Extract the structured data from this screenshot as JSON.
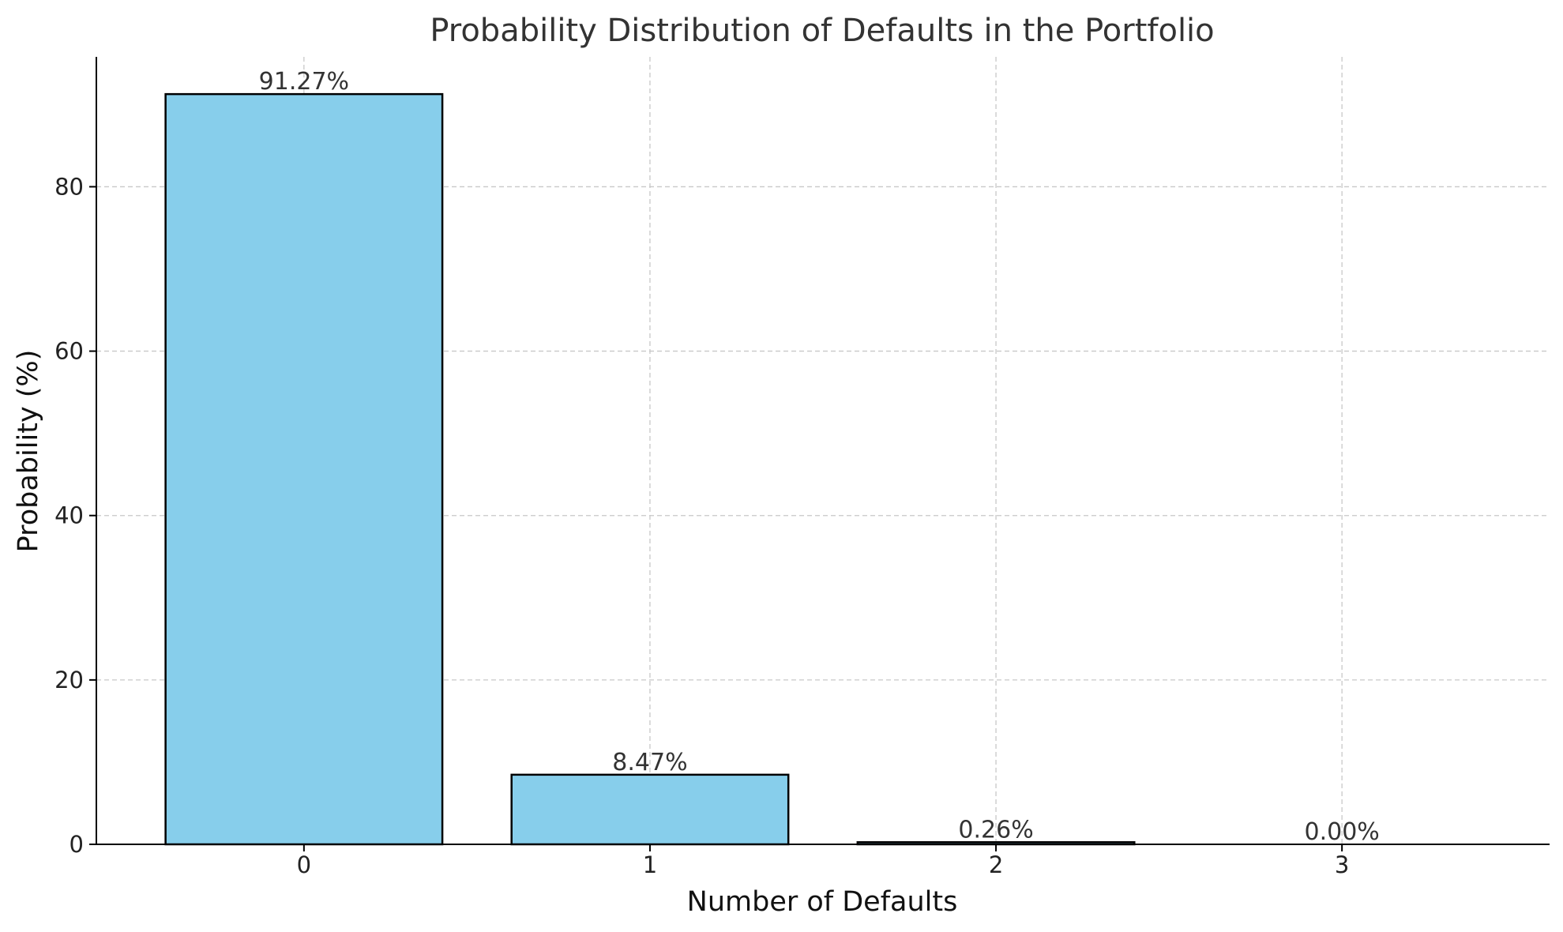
{
  "chart_data": {
    "type": "bar",
    "title": "Probability Distribution of Defaults in the Portfolio",
    "xlabel": "Number of Defaults",
    "ylabel": "Probability (%)",
    "categories": [
      "0",
      "1",
      "2",
      "3"
    ],
    "values": [
      91.27,
      8.47,
      0.26,
      0.0
    ],
    "data_labels": [
      "91.27%",
      "8.47%",
      "0.26%",
      "0.00%"
    ],
    "ylim": [
      0,
      95.8
    ],
    "yticks": [
      0,
      20,
      40,
      60,
      80
    ],
    "grid": true,
    "bar_color": "#87CEEB",
    "edge_color": "#000000"
  }
}
